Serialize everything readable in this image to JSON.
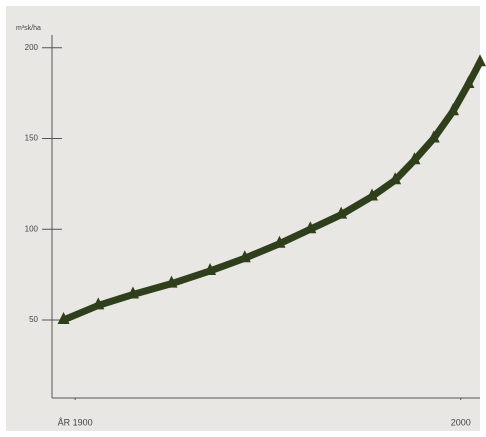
{
  "chart_data": {
    "type": "line",
    "y_label": "m³sk/ha",
    "x": [
      1897,
      1906,
      1915,
      1925,
      1935,
      1944,
      1953,
      1961,
      1969,
      1977,
      1983,
      1988,
      1993,
      1998,
      2002,
      2005
    ],
    "series": [
      {
        "color": "#2f3f1c",
        "values": [
          50,
          58,
          64,
          70,
          77,
          84,
          92,
          100,
          108,
          118,
          127,
          138,
          150,
          165,
          180,
          192
        ]
      }
    ],
    "xlim": [
      1894,
      2005
    ],
    "xticks": [
      {
        "value": 1900,
        "label": "ÅR 1900"
      },
      2000
    ],
    "ylim": [
      7,
      207
    ],
    "yticks": [
      50,
      100,
      150,
      200
    ]
  }
}
